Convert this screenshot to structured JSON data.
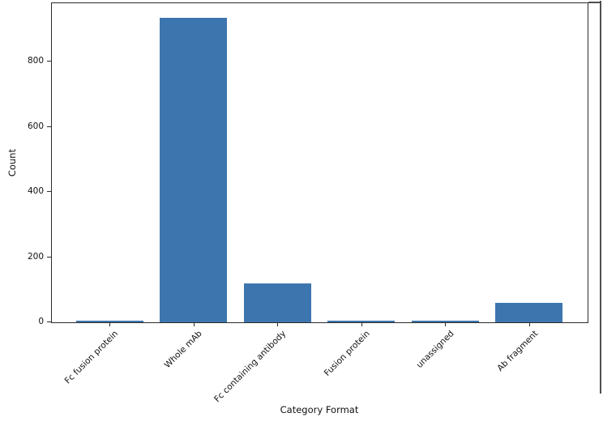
{
  "chart_data": {
    "type": "bar",
    "title": "",
    "xlabel": "Category Format",
    "ylabel": "Count",
    "categories": [
      "Fc fusion protein",
      "Whole mAb",
      "Fc containing antibody",
      "Fusion protein",
      "unassigned",
      "Ab fragment"
    ],
    "values": [
      5,
      935,
      120,
      5,
      5,
      60
    ],
    "yticks": [
      0,
      200,
      400,
      600,
      800
    ],
    "ylim": [
      0,
      980
    ],
    "xtick_rotation_deg": 45,
    "grid": false,
    "legend_position": "none",
    "bar_color": "#3d76af",
    "spine_color": "#2b2b2b",
    "text_color": "#111111",
    "background_color": "#ffffff"
  }
}
